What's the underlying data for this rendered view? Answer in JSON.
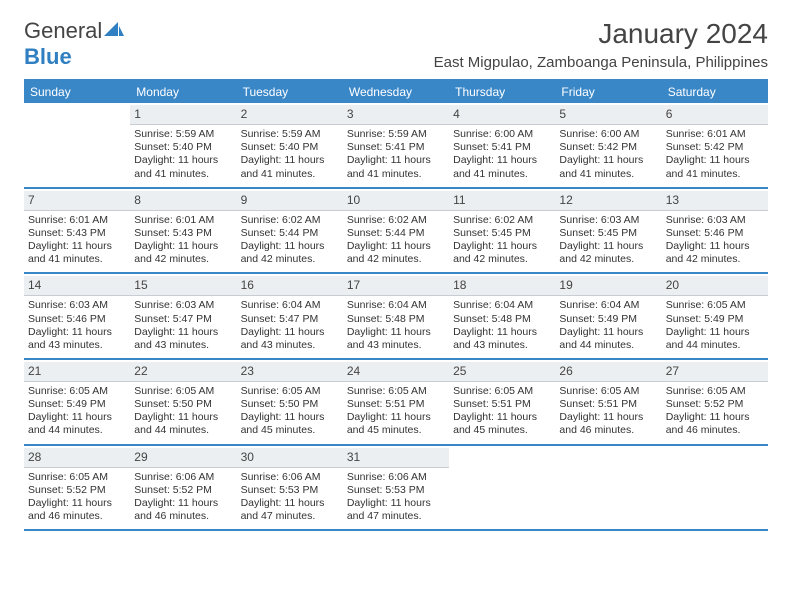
{
  "brand": {
    "name1": "General",
    "name2": "Blue"
  },
  "title": "January 2024",
  "location": "East Migpulao, Zamboanga Peninsula, Philippines",
  "colors": {
    "accent": "#3a87c8",
    "daybg": "#eceff1",
    "dayborder": "#c7cdd2",
    "text": "#333333",
    "background": "#ffffff"
  },
  "typography": {
    "title_fontsize": 28,
    "location_fontsize": 15,
    "dow_fontsize": 12,
    "daynum_fontsize": 12,
    "cell_fontsize": 10.5
  },
  "daysOfWeek": [
    "Sunday",
    "Monday",
    "Tuesday",
    "Wednesday",
    "Thursday",
    "Friday",
    "Saturday"
  ],
  "weeks": [
    [
      {
        "n": "",
        "sunrise": "",
        "sunset": "",
        "daylight1": "",
        "daylight2": ""
      },
      {
        "n": "1",
        "sunrise": "Sunrise: 5:59 AM",
        "sunset": "Sunset: 5:40 PM",
        "daylight1": "Daylight: 11 hours",
        "daylight2": "and 41 minutes."
      },
      {
        "n": "2",
        "sunrise": "Sunrise: 5:59 AM",
        "sunset": "Sunset: 5:40 PM",
        "daylight1": "Daylight: 11 hours",
        "daylight2": "and 41 minutes."
      },
      {
        "n": "3",
        "sunrise": "Sunrise: 5:59 AM",
        "sunset": "Sunset: 5:41 PM",
        "daylight1": "Daylight: 11 hours",
        "daylight2": "and 41 minutes."
      },
      {
        "n": "4",
        "sunrise": "Sunrise: 6:00 AM",
        "sunset": "Sunset: 5:41 PM",
        "daylight1": "Daylight: 11 hours",
        "daylight2": "and 41 minutes."
      },
      {
        "n": "5",
        "sunrise": "Sunrise: 6:00 AM",
        "sunset": "Sunset: 5:42 PM",
        "daylight1": "Daylight: 11 hours",
        "daylight2": "and 41 minutes."
      },
      {
        "n": "6",
        "sunrise": "Sunrise: 6:01 AM",
        "sunset": "Sunset: 5:42 PM",
        "daylight1": "Daylight: 11 hours",
        "daylight2": "and 41 minutes."
      }
    ],
    [
      {
        "n": "7",
        "sunrise": "Sunrise: 6:01 AM",
        "sunset": "Sunset: 5:43 PM",
        "daylight1": "Daylight: 11 hours",
        "daylight2": "and 41 minutes."
      },
      {
        "n": "8",
        "sunrise": "Sunrise: 6:01 AM",
        "sunset": "Sunset: 5:43 PM",
        "daylight1": "Daylight: 11 hours",
        "daylight2": "and 42 minutes."
      },
      {
        "n": "9",
        "sunrise": "Sunrise: 6:02 AM",
        "sunset": "Sunset: 5:44 PM",
        "daylight1": "Daylight: 11 hours",
        "daylight2": "and 42 minutes."
      },
      {
        "n": "10",
        "sunrise": "Sunrise: 6:02 AM",
        "sunset": "Sunset: 5:44 PM",
        "daylight1": "Daylight: 11 hours",
        "daylight2": "and 42 minutes."
      },
      {
        "n": "11",
        "sunrise": "Sunrise: 6:02 AM",
        "sunset": "Sunset: 5:45 PM",
        "daylight1": "Daylight: 11 hours",
        "daylight2": "and 42 minutes."
      },
      {
        "n": "12",
        "sunrise": "Sunrise: 6:03 AM",
        "sunset": "Sunset: 5:45 PM",
        "daylight1": "Daylight: 11 hours",
        "daylight2": "and 42 minutes."
      },
      {
        "n": "13",
        "sunrise": "Sunrise: 6:03 AM",
        "sunset": "Sunset: 5:46 PM",
        "daylight1": "Daylight: 11 hours",
        "daylight2": "and 42 minutes."
      }
    ],
    [
      {
        "n": "14",
        "sunrise": "Sunrise: 6:03 AM",
        "sunset": "Sunset: 5:46 PM",
        "daylight1": "Daylight: 11 hours",
        "daylight2": "and 43 minutes."
      },
      {
        "n": "15",
        "sunrise": "Sunrise: 6:03 AM",
        "sunset": "Sunset: 5:47 PM",
        "daylight1": "Daylight: 11 hours",
        "daylight2": "and 43 minutes."
      },
      {
        "n": "16",
        "sunrise": "Sunrise: 6:04 AM",
        "sunset": "Sunset: 5:47 PM",
        "daylight1": "Daylight: 11 hours",
        "daylight2": "and 43 minutes."
      },
      {
        "n": "17",
        "sunrise": "Sunrise: 6:04 AM",
        "sunset": "Sunset: 5:48 PM",
        "daylight1": "Daylight: 11 hours",
        "daylight2": "and 43 minutes."
      },
      {
        "n": "18",
        "sunrise": "Sunrise: 6:04 AM",
        "sunset": "Sunset: 5:48 PM",
        "daylight1": "Daylight: 11 hours",
        "daylight2": "and 43 minutes."
      },
      {
        "n": "19",
        "sunrise": "Sunrise: 6:04 AM",
        "sunset": "Sunset: 5:49 PM",
        "daylight1": "Daylight: 11 hours",
        "daylight2": "and 44 minutes."
      },
      {
        "n": "20",
        "sunrise": "Sunrise: 6:05 AM",
        "sunset": "Sunset: 5:49 PM",
        "daylight1": "Daylight: 11 hours",
        "daylight2": "and 44 minutes."
      }
    ],
    [
      {
        "n": "21",
        "sunrise": "Sunrise: 6:05 AM",
        "sunset": "Sunset: 5:49 PM",
        "daylight1": "Daylight: 11 hours",
        "daylight2": "and 44 minutes."
      },
      {
        "n": "22",
        "sunrise": "Sunrise: 6:05 AM",
        "sunset": "Sunset: 5:50 PM",
        "daylight1": "Daylight: 11 hours",
        "daylight2": "and 44 minutes."
      },
      {
        "n": "23",
        "sunrise": "Sunrise: 6:05 AM",
        "sunset": "Sunset: 5:50 PM",
        "daylight1": "Daylight: 11 hours",
        "daylight2": "and 45 minutes."
      },
      {
        "n": "24",
        "sunrise": "Sunrise: 6:05 AM",
        "sunset": "Sunset: 5:51 PM",
        "daylight1": "Daylight: 11 hours",
        "daylight2": "and 45 minutes."
      },
      {
        "n": "25",
        "sunrise": "Sunrise: 6:05 AM",
        "sunset": "Sunset: 5:51 PM",
        "daylight1": "Daylight: 11 hours",
        "daylight2": "and 45 minutes."
      },
      {
        "n": "26",
        "sunrise": "Sunrise: 6:05 AM",
        "sunset": "Sunset: 5:51 PM",
        "daylight1": "Daylight: 11 hours",
        "daylight2": "and 46 minutes."
      },
      {
        "n": "27",
        "sunrise": "Sunrise: 6:05 AM",
        "sunset": "Sunset: 5:52 PM",
        "daylight1": "Daylight: 11 hours",
        "daylight2": "and 46 minutes."
      }
    ],
    [
      {
        "n": "28",
        "sunrise": "Sunrise: 6:05 AM",
        "sunset": "Sunset: 5:52 PM",
        "daylight1": "Daylight: 11 hours",
        "daylight2": "and 46 minutes."
      },
      {
        "n": "29",
        "sunrise": "Sunrise: 6:06 AM",
        "sunset": "Sunset: 5:52 PM",
        "daylight1": "Daylight: 11 hours",
        "daylight2": "and 46 minutes."
      },
      {
        "n": "30",
        "sunrise": "Sunrise: 6:06 AM",
        "sunset": "Sunset: 5:53 PM",
        "daylight1": "Daylight: 11 hours",
        "daylight2": "and 47 minutes."
      },
      {
        "n": "31",
        "sunrise": "Sunrise: 6:06 AM",
        "sunset": "Sunset: 5:53 PM",
        "daylight1": "Daylight: 11 hours",
        "daylight2": "and 47 minutes."
      },
      {
        "n": "",
        "sunrise": "",
        "sunset": "",
        "daylight1": "",
        "daylight2": ""
      },
      {
        "n": "",
        "sunrise": "",
        "sunset": "",
        "daylight1": "",
        "daylight2": ""
      },
      {
        "n": "",
        "sunrise": "",
        "sunset": "",
        "daylight1": "",
        "daylight2": ""
      }
    ]
  ]
}
